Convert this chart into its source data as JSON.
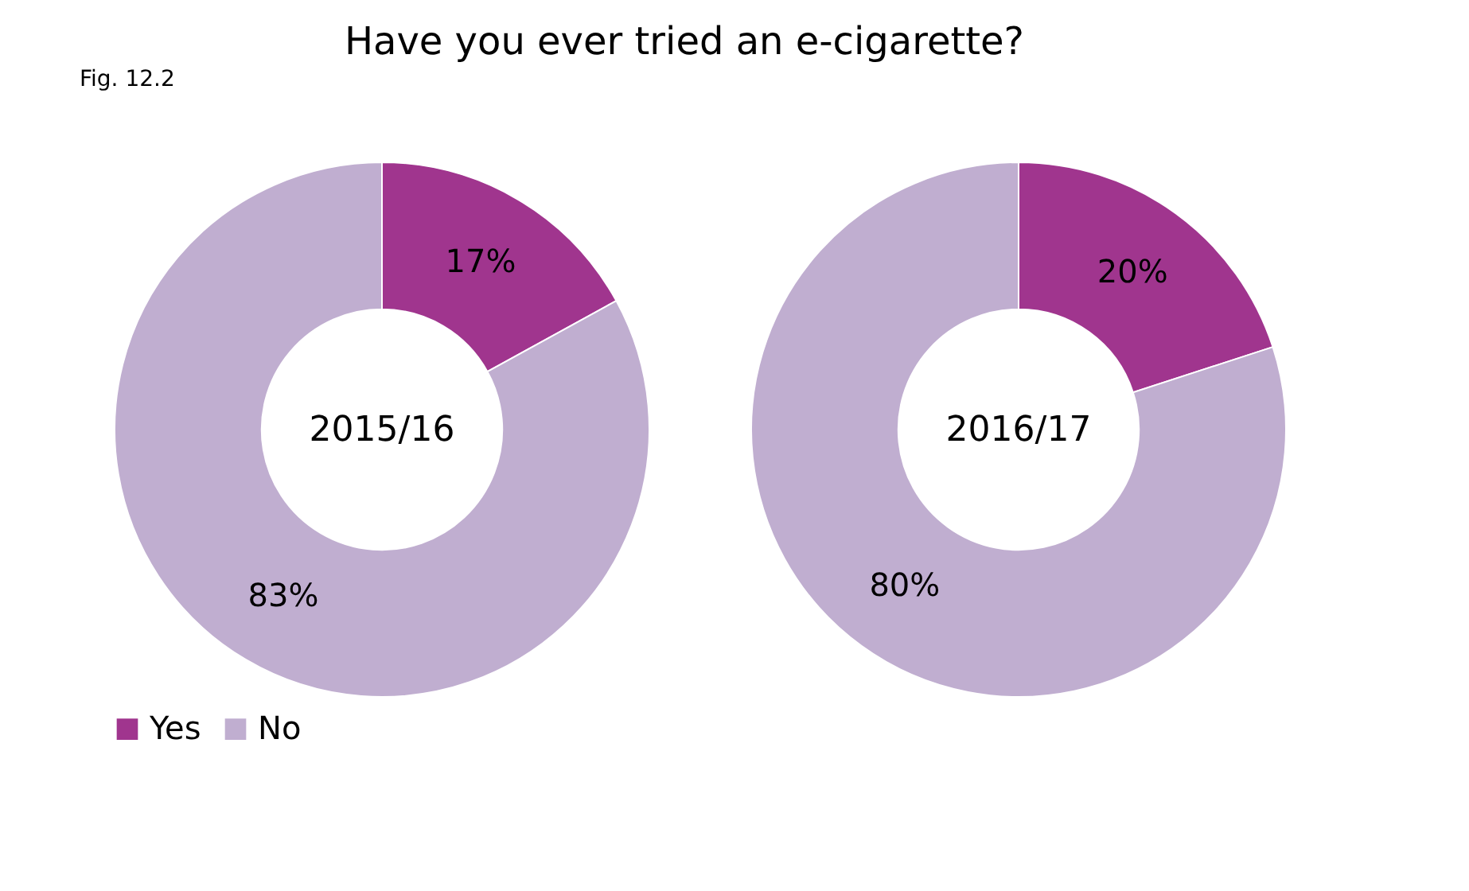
{
  "chart_data": {
    "type": "donut",
    "title": "Have you ever tried an e-cigarette?",
    "annotations": [
      "Fig. 12.2"
    ],
    "categories": [
      "Yes",
      "No"
    ],
    "colors": [
      "#a0358e",
      "#c0aed0"
    ],
    "legend": "bottom",
    "series": [
      {
        "name": "2015/16",
        "values": [
          17,
          83
        ],
        "value_labels": [
          "17%",
          "83%"
        ]
      },
      {
        "name": "2016/17",
        "values": [
          20,
          80
        ],
        "value_labels": [
          "20%",
          "80%"
        ]
      }
    ]
  }
}
